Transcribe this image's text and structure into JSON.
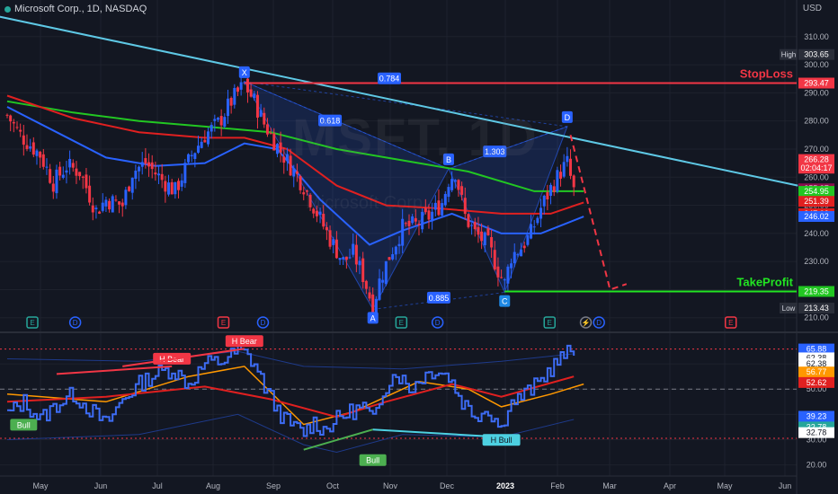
{
  "header": {
    "title": "Microsoft Corp., 1D, NASDAQ",
    "currency": "USD"
  },
  "watermark": {
    "symbol": "MSFT, 1D",
    "name": "Microsoft Corp."
  },
  "colors": {
    "background": "#131722",
    "grid": "#1e222d",
    "up": "#2962ff",
    "down": "#f23645",
    "trendline": "#5ec8e5",
    "stoploss": "#f23645",
    "takeprofit": "#22e522",
    "ma_green": "#22c722",
    "ma_red": "#e02020",
    "ma_blue": "#2962ff",
    "rsi": "#3d6cf5",
    "rsi_ma_red": "#e02020",
    "rsi_ma_orange": "#ff9800"
  },
  "chart_data": [
    {
      "type": "candlestick",
      "title": "Microsoft Corp., 1D, NASDAQ",
      "ylabel": "USD",
      "ylim": [
        208,
        316
      ],
      "y_ticks": [
        210.0,
        220.0,
        230.0,
        240.0,
        250.0,
        260.0,
        270.0,
        280.0,
        290.0,
        300.0,
        310.0
      ],
      "x_ticks": [
        "May",
        "Jun",
        "Jul",
        "Aug",
        "Sep",
        "Oct",
        "Nov",
        "Dec",
        "2023",
        "Feb",
        "Mar",
        "Apr",
        "May",
        "Jun"
      ],
      "close_path": [
        [
          0,
          282
        ],
        [
          4,
          275
        ],
        [
          10,
          268
        ],
        [
          14,
          258
        ],
        [
          18,
          264
        ],
        [
          22,
          262
        ],
        [
          27,
          248
        ],
        [
          30,
          252
        ],
        [
          35,
          250
        ],
        [
          38,
          262
        ],
        [
          42,
          265
        ],
        [
          47,
          259
        ],
        [
          51,
          255
        ],
        [
          56,
          268
        ],
        [
          60,
          275
        ],
        [
          64,
          279
        ],
        [
          68,
          287
        ],
        [
          72,
          293
        ],
        [
          75,
          287
        ],
        [
          78,
          279
        ],
        [
          82,
          271
        ],
        [
          86,
          264
        ],
        [
          90,
          257
        ],
        [
          95,
          245
        ],
        [
          98,
          238
        ],
        [
          102,
          230
        ],
        [
          105,
          233
        ],
        [
          108,
          225
        ],
        [
          111,
          214
        ],
        [
          113,
          223
        ],
        [
          116,
          232
        ],
        [
          120,
          242
        ],
        [
          124,
          243
        ],
        [
          128,
          246
        ],
        [
          132,
          251
        ],
        [
          134,
          259
        ],
        [
          136,
          262
        ],
        [
          139,
          246
        ],
        [
          142,
          240
        ],
        [
          146,
          236
        ],
        [
          149,
          227
        ],
        [
          151,
          222
        ],
        [
          153,
          232
        ],
        [
          156,
          235
        ],
        [
          159,
          240
        ],
        [
          162,
          249
        ],
        [
          165,
          256
        ],
        [
          168,
          262
        ],
        [
          170,
          265
        ],
        [
          172,
          255
        ],
        [
          175,
          256
        ]
      ],
      "pattern": {
        "points": [
          {
            "label": "X",
            "x": 72,
            "y": 294
          },
          {
            "label": "A",
            "x": 111,
            "y": 213
          },
          {
            "label": "B",
            "x": 134,
            "y": 263
          },
          {
            "label": "C",
            "x": 151,
            "y": 219
          },
          {
            "label": "D",
            "x": 170,
            "y": 278
          }
        ],
        "ratios": [
          {
            "text": "0.618",
            "x": 98,
            "y": 280
          },
          {
            "text": "0.784",
            "x": 116,
            "y": 295
          },
          {
            "text": "1.303",
            "x": 148,
            "y": 269
          },
          {
            "text": "0.885",
            "x": 131,
            "y": 217
          }
        ]
      },
      "trendline": [
        [
          -10,
          319
        ],
        [
          240,
          257
        ]
      ],
      "projection": [
        [
          171,
          275
        ],
        [
          183,
          220
        ],
        [
          188,
          222
        ]
      ],
      "levels": [
        {
          "name": "StopLoss",
          "value": 293.47,
          "color": "#f23645"
        },
        {
          "name": "TakeProfit",
          "value": 219.35,
          "color": "#22e522"
        }
      ],
      "moving_averages": [
        {
          "color": "#22c722",
          "points": [
            [
              0,
              287
            ],
            [
              20,
              283
            ],
            [
              40,
              280
            ],
            [
              60,
              278
            ],
            [
              80,
              276
            ],
            [
              100,
              270
            ],
            [
              120,
              266
            ],
            [
              140,
              262
            ],
            [
              160,
              255
            ],
            [
              175,
              255
            ]
          ]
        },
        {
          "color": "#e02020",
          "points": [
            [
              0,
              289
            ],
            [
              20,
              281
            ],
            [
              40,
              276
            ],
            [
              60,
              274
            ],
            [
              72,
              274
            ],
            [
              85,
              270
            ],
            [
              100,
              257
            ],
            [
              115,
              250
            ],
            [
              130,
              249
            ],
            [
              150,
              247
            ],
            [
              165,
              247
            ],
            [
              175,
              251
            ]
          ]
        },
        {
          "color": "#2962ff",
          "points": [
            [
              0,
              285
            ],
            [
              15,
              276
            ],
            [
              30,
              267
            ],
            [
              45,
              264
            ],
            [
              60,
              265
            ],
            [
              72,
              272
            ],
            [
              82,
              270
            ],
            [
              95,
              252
            ],
            [
              110,
              236
            ],
            [
              120,
              241
            ],
            [
              135,
              247
            ],
            [
              150,
              240
            ],
            [
              162,
              240
            ],
            [
              175,
              246
            ]
          ]
        }
      ],
      "price_labels": [
        {
          "text": "High",
          "value": "303.65",
          "y": 303.65,
          "bg": "#2a2e39",
          "fg": "#ffffff"
        },
        {
          "text": "",
          "value": "293.47",
          "y": 293.47,
          "bg": "#f23645",
          "fg": "#ffffff"
        },
        {
          "text": "",
          "value": "266.28",
          "y": 266.28,
          "bg": "#f23645",
          "fg": "#ffffff"
        },
        {
          "text": "",
          "value": "02:04:17",
          "y": 263.2,
          "bg": "#f23645",
          "fg": "#ffffff"
        },
        {
          "text": "",
          "value": "255.87",
          "y": 255.87,
          "bg": "#880e4f",
          "fg": "#ffffff"
        },
        {
          "text": "",
          "value": "254.95",
          "y": 254.95,
          "bg": "#22c722",
          "fg": "#ffffff"
        },
        {
          "text": "",
          "value": "251.39",
          "y": 251.39,
          "bg": "#e02020",
          "fg": "#ffffff"
        },
        {
          "text": "",
          "value": "247.03",
          "y": 247.03,
          "bg": "#e02020",
          "fg": "#ffffff"
        },
        {
          "text": "",
          "value": "246.02",
          "y": 246.02,
          "bg": "#2962ff",
          "fg": "#ffffff"
        },
        {
          "text": "",
          "value": "219.35",
          "y": 219.35,
          "bg": "#22c722",
          "fg": "#ffffff"
        },
        {
          "text": "Low",
          "value": "213.43",
          "y": 213.43,
          "bg": "#2a2e39",
          "fg": "#ffffff"
        }
      ],
      "events": [
        {
          "label": "E",
          "x": 0,
          "kind": "earnings"
        },
        {
          "label": "D",
          "x": 13,
          "kind": "dividend"
        },
        {
          "label": "E",
          "x": 58,
          "kind": "earnings-red"
        },
        {
          "label": "D",
          "x": 70,
          "kind": "dividend"
        },
        {
          "label": "E",
          "x": 112,
          "kind": "earnings"
        },
        {
          "label": "D",
          "x": 123,
          "kind": "dividend"
        },
        {
          "label": "E",
          "x": 157,
          "kind": "earnings"
        },
        {
          "label": "⚡",
          "x": 168,
          "kind": "split"
        },
        {
          "label": "D",
          "x": 172,
          "kind": "dividend"
        },
        {
          "label": "E",
          "x": 212,
          "kind": "earnings-red"
        }
      ]
    },
    {
      "type": "line",
      "ylim": [
        17,
        70
      ],
      "y_ticks": [
        20.0,
        30.0,
        40.0,
        50.0,
        60.0
      ],
      "rsi": [
        [
          0,
          40
        ],
        [
          5,
          45
        ],
        [
          10,
          38
        ],
        [
          15,
          44
        ],
        [
          20,
          48
        ],
        [
          25,
          42
        ],
        [
          30,
          36
        ],
        [
          35,
          46
        ],
        [
          40,
          52
        ],
        [
          45,
          56
        ],
        [
          50,
          58
        ],
        [
          55,
          52
        ],
        [
          60,
          60
        ],
        [
          65,
          61
        ],
        [
          70,
          65
        ],
        [
          72,
          64
        ],
        [
          75,
          60
        ],
        [
          78,
          51
        ],
        [
          81,
          44
        ],
        [
          84,
          38
        ],
        [
          87,
          35
        ],
        [
          90,
          33
        ],
        [
          93,
          37
        ],
        [
          96,
          34
        ],
        [
          100,
          38
        ],
        [
          104,
          41
        ],
        [
          108,
          43
        ],
        [
          111,
          37
        ],
        [
          114,
          50
        ],
        [
          118,
          57
        ],
        [
          122,
          50
        ],
        [
          126,
          55
        ],
        [
          130,
          58
        ],
        [
          134,
          55
        ],
        [
          138,
          45
        ],
        [
          142,
          40
        ],
        [
          146,
          42
        ],
        [
          150,
          34
        ],
        [
          152,
          44
        ],
        [
          155,
          46
        ],
        [
          158,
          49
        ],
        [
          161,
          52
        ],
        [
          164,
          57
        ],
        [
          167,
          61
        ],
        [
          170,
          64
        ],
        [
          172,
          65
        ]
      ],
      "rsi_ma_red": [
        [
          0,
          45
        ],
        [
          30,
          47
        ],
        [
          60,
          51
        ],
        [
          80,
          46
        ],
        [
          100,
          39
        ],
        [
          115,
          45
        ],
        [
          135,
          52
        ],
        [
          150,
          47
        ],
        [
          172,
          55
        ]
      ],
      "rsi_ma_orange": [
        [
          0,
          48
        ],
        [
          30,
          45
        ],
        [
          55,
          55
        ],
        [
          72,
          59
        ],
        [
          90,
          36
        ],
        [
          105,
          41
        ],
        [
          125,
          53
        ],
        [
          140,
          50
        ],
        [
          150,
          43
        ],
        [
          165,
          48
        ],
        [
          175,
          52
        ]
      ],
      "band_upper": [
        [
          0,
          62
        ],
        [
          40,
          61
        ],
        [
          70,
          65
        ],
        [
          90,
          59
        ],
        [
          120,
          58
        ],
        [
          150,
          61
        ],
        [
          172,
          64
        ]
      ],
      "band_lower": [
        [
          0,
          30
        ],
        [
          40,
          32
        ],
        [
          70,
          40
        ],
        [
          90,
          28
        ],
        [
          100,
          25
        ],
        [
          120,
          32
        ],
        [
          150,
          31
        ],
        [
          172,
          38
        ]
      ],
      "levels": [
        {
          "value": 65.88,
          "style": "dotted",
          "color": "#f23645"
        },
        {
          "value": 50,
          "style": "dashed",
          "color": "#787b86"
        },
        {
          "value": 30.5,
          "style": "dotted",
          "color": "#f23645"
        }
      ],
      "divergences": [
        {
          "label": "H Bear",
          "kind": "bear",
          "points": [
            [
              15,
              56
            ],
            [
              50,
              59
            ]
          ]
        },
        {
          "label": "H Bear",
          "kind": "bear",
          "points": [
            [
              35,
              59
            ],
            [
              72,
              66
            ]
          ]
        },
        {
          "label": "Bull",
          "kind": "bull",
          "points": [
            [
              5,
              40
            ],
            [
              5,
              40
            ]
          ]
        },
        {
          "label": "Bull",
          "kind": "bull",
          "points": [
            [
              90,
              26
            ],
            [
              111,
              34
            ]
          ]
        },
        {
          "label": "H Bull",
          "kind": "hbull",
          "points": [
            [
              111,
              34
            ],
            [
              150,
              31
            ]
          ]
        }
      ],
      "value_labels": [
        {
          "value": "65.88",
          "y": 65.88,
          "bg": "#2962ff"
        },
        {
          "value": "62.38",
          "y": 62.38,
          "bg": "#ffffff",
          "fg": "#131722"
        },
        {
          "value": "62.38",
          "y": 60.1,
          "bg": "#ffffff",
          "fg": "#131722"
        },
        {
          "value": "56.77",
          "y": 56.77,
          "bg": "#ff9800"
        },
        {
          "value": "52.62",
          "y": 52.62,
          "bg": "#e02020"
        },
        {
          "value": "39.23",
          "y": 39.23,
          "bg": "#2962ff"
        },
        {
          "value": "32.78",
          "y": 35.0,
          "bg": "#26a69a"
        },
        {
          "value": "32.78",
          "y": 32.78,
          "bg": "#ffffff",
          "fg": "#131722"
        }
      ]
    }
  ]
}
